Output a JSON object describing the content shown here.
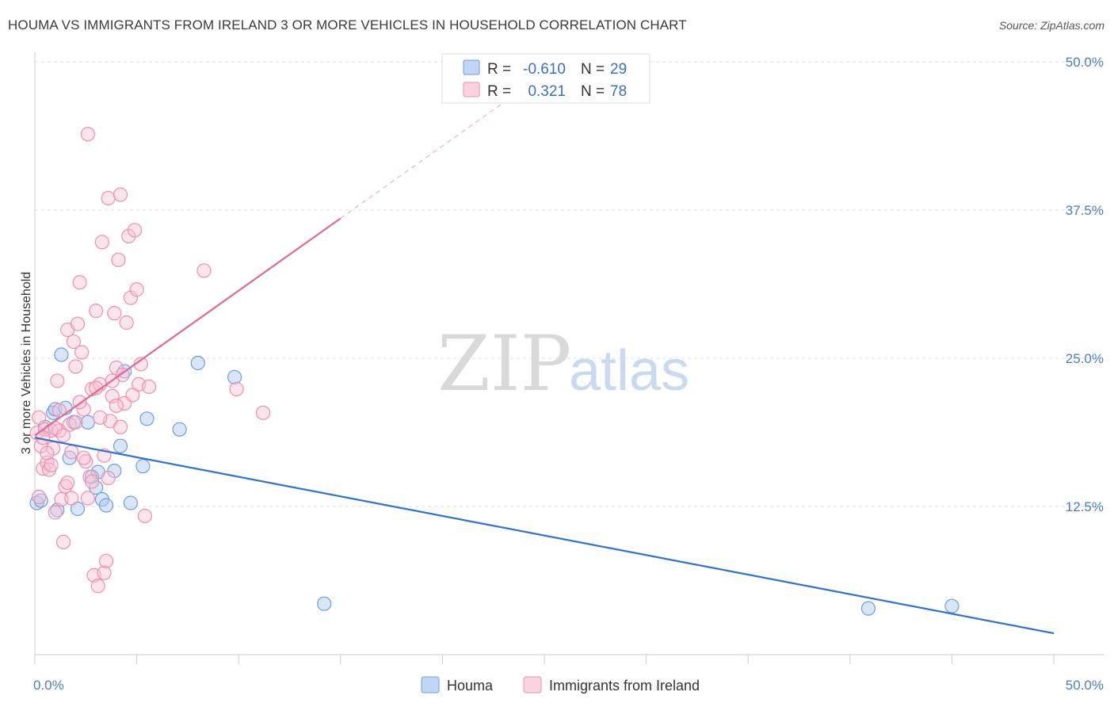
{
  "title": "HOUMA VS IMMIGRANTS FROM IRELAND 3 OR MORE VEHICLES IN HOUSEHOLD CORRELATION CHART",
  "source": "Source: ZipAtlas.com",
  "watermark": {
    "zip": "ZIP",
    "atlas": "atlas"
  },
  "colors": {
    "houma_fill": "#aac8f0",
    "houma_stroke": "#6f9de0",
    "houma_line": "#2f72d0",
    "ireland_fill": "#f8c4d4",
    "ireland_stroke": "#ee8fae",
    "ireland_line": "#e06a94",
    "grid": "#dddddd",
    "tick_text": "#4a7cc7"
  },
  "legend": {
    "rows": [
      {
        "r_label": "R =",
        "r_value": "-0.610",
        "n_label": "N =",
        "n_value": "29"
      },
      {
        "r_label": "R =",
        "r_value": "0.321",
        "n_label": "N =",
        "n_value": "78"
      }
    ]
  },
  "chart_data": {
    "type": "scatter",
    "ylabel": "3 or more Vehicles in Household",
    "xlim": [
      0,
      50
    ],
    "ylim": [
      0,
      50
    ],
    "x_tick_labels": [
      "0.0%",
      "50.0%"
    ],
    "y_tick_labels": [
      "12.5%",
      "25.0%",
      "37.5%",
      "50.0%"
    ],
    "y_ticks": [
      12.5,
      25.0,
      37.5,
      50.0
    ],
    "grid": true,
    "legend_position": "top-center",
    "series": [
      {
        "name": "Houma",
        "r": -0.61,
        "n": 29,
        "trend": {
          "x0": 0,
          "y0": 18.3,
          "x1": 50,
          "y1": 1.8,
          "dashed_extension": false
        },
        "points": [
          [
            0.1,
            12.8
          ],
          [
            0.5,
            19.2
          ],
          [
            0.9,
            20.4
          ],
          [
            1.0,
            20.7
          ],
          [
            1.1,
            12.2
          ],
          [
            1.3,
            25.3
          ],
          [
            1.5,
            20.8
          ],
          [
            1.7,
            16.6
          ],
          [
            1.9,
            19.6
          ],
          [
            2.1,
            12.3
          ],
          [
            2.6,
            19.6
          ],
          [
            2.8,
            15.0
          ],
          [
            3.0,
            14.1
          ],
          [
            3.1,
            15.4
          ],
          [
            3.3,
            13.1
          ],
          [
            3.5,
            12.6
          ],
          [
            3.9,
            15.5
          ],
          [
            4.2,
            17.6
          ],
          [
            4.4,
            23.9
          ],
          [
            4.7,
            12.8
          ],
          [
            5.3,
            15.9
          ],
          [
            5.5,
            19.9
          ],
          [
            7.1,
            19.0
          ],
          [
            8.0,
            24.6
          ],
          [
            9.8,
            23.4
          ],
          [
            14.2,
            4.3
          ],
          [
            40.9,
            3.9
          ],
          [
            45.0,
            4.1
          ],
          [
            0.3,
            13.0
          ]
        ]
      },
      {
        "name": "Immigrants from Ireland",
        "r": 0.321,
        "n": 78,
        "trend": {
          "x0": 0,
          "y0": 18.5,
          "x1": 15,
          "y1": 36.8,
          "dashed_x1": 25,
          "dashed_y1": 49.0
        },
        "points": [
          [
            0.1,
            18.7
          ],
          [
            0.2,
            13.3
          ],
          [
            0.3,
            17.6
          ],
          [
            0.4,
            15.7
          ],
          [
            0.5,
            19.0
          ],
          [
            0.6,
            16.2
          ],
          [
            0.7,
            15.6
          ],
          [
            0.8,
            18.9
          ],
          [
            0.9,
            17.4
          ],
          [
            1.0,
            12.0
          ],
          [
            1.1,
            23.1
          ],
          [
            1.2,
            18.9
          ],
          [
            1.3,
            13.1
          ],
          [
            1.4,
            9.5
          ],
          [
            1.5,
            14.2
          ],
          [
            1.6,
            27.4
          ],
          [
            1.7,
            19.4
          ],
          [
            1.8,
            13.2
          ],
          [
            1.9,
            26.4
          ],
          [
            2.0,
            24.3
          ],
          [
            2.1,
            27.9
          ],
          [
            2.2,
            31.4
          ],
          [
            2.3,
            25.5
          ],
          [
            2.4,
            20.7
          ],
          [
            2.5,
            16.3
          ],
          [
            2.6,
            43.9
          ],
          [
            2.7,
            15.0
          ],
          [
            2.8,
            22.4
          ],
          [
            2.9,
            6.7
          ],
          [
            3.0,
            29.0
          ],
          [
            3.1,
            5.8
          ],
          [
            3.2,
            22.8
          ],
          [
            3.3,
            34.8
          ],
          [
            3.4,
            6.9
          ],
          [
            3.5,
            7.9
          ],
          [
            3.6,
            38.5
          ],
          [
            3.7,
            19.7
          ],
          [
            3.8,
            21.8
          ],
          [
            3.9,
            28.8
          ],
          [
            4.0,
            24.2
          ],
          [
            4.1,
            33.3
          ],
          [
            4.2,
            38.8
          ],
          [
            4.3,
            23.6
          ],
          [
            4.4,
            21.2
          ],
          [
            4.5,
            28.0
          ],
          [
            4.6,
            35.3
          ],
          [
            4.7,
            30.1
          ],
          [
            4.8,
            21.9
          ],
          [
            4.9,
            35.8
          ],
          [
            5.0,
            30.8
          ],
          [
            5.1,
            22.8
          ],
          [
            5.2,
            24.5
          ],
          [
            5.4,
            11.7
          ],
          [
            5.6,
            22.6
          ],
          [
            8.3,
            32.4
          ],
          [
            9.9,
            22.4
          ],
          [
            11.2,
            20.4
          ],
          [
            0.2,
            20.0
          ],
          [
            0.4,
            18.3
          ],
          [
            0.6,
            17.0
          ],
          [
            0.8,
            16.0
          ],
          [
            1.0,
            19.1
          ],
          [
            1.2,
            20.6
          ],
          [
            1.4,
            18.5
          ],
          [
            1.6,
            14.5
          ],
          [
            1.8,
            17.1
          ],
          [
            2.0,
            19.6
          ],
          [
            2.2,
            21.3
          ],
          [
            2.4,
            16.6
          ],
          [
            2.6,
            13.2
          ],
          [
            2.8,
            14.6
          ],
          [
            3.0,
            22.5
          ],
          [
            3.2,
            20.0
          ],
          [
            3.4,
            16.8
          ],
          [
            3.6,
            14.9
          ],
          [
            3.8,
            23.1
          ],
          [
            4.0,
            21.0
          ],
          [
            4.2,
            19.2
          ]
        ]
      }
    ]
  }
}
